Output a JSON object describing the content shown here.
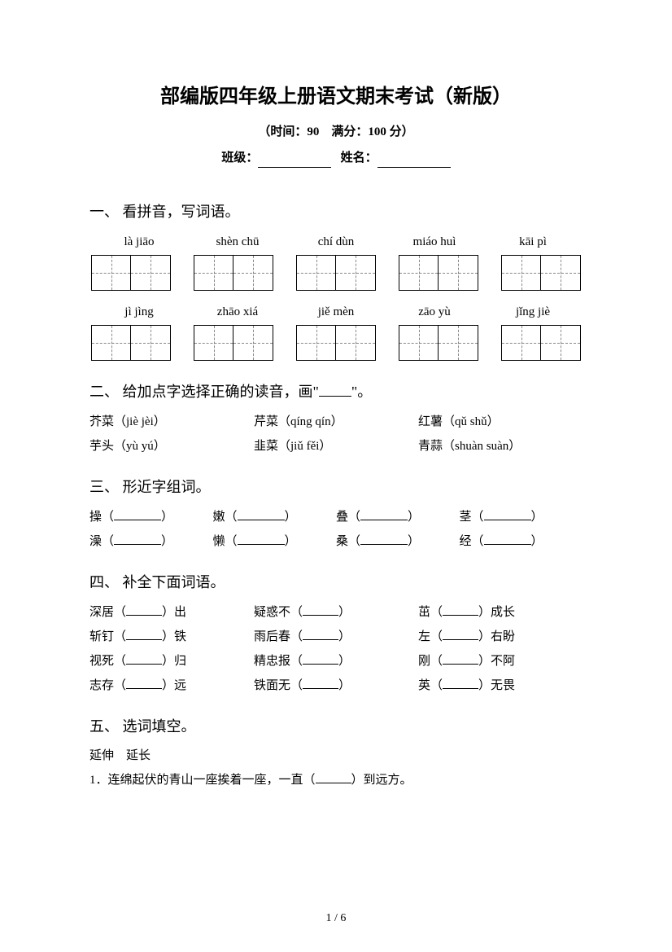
{
  "header": {
    "title": "部编版四年级上册语文期末考试（新版）",
    "subtitle": "（时间：90　满分：100 分）",
    "class_label": "班级：",
    "name_label": "姓名："
  },
  "q1": {
    "heading": "一、 看拼音，写词语。",
    "row1": [
      "là jiāo",
      "shèn chū",
      "chí dùn",
      "miáo huì",
      "kāi pì"
    ],
    "row2": [
      "jì jìng",
      "zhāo xiá",
      "jiě mèn",
      "zāo yù",
      "jǐng jiè"
    ]
  },
  "q2": {
    "heading_prefix": "二、 给加点字选择正确的读音，画\"",
    "heading_suffix": "\"。",
    "rows": [
      [
        {
          "word": "芥菜",
          "py": "（jiè jèi）"
        },
        {
          "word": "芹菜",
          "py": "（qíng qín）"
        },
        {
          "word": "红薯",
          "py": "（qǔ shǔ）"
        }
      ],
      [
        {
          "word": "芋头",
          "py": "（yù yú）"
        },
        {
          "word": "韭菜",
          "py": "（jiǔ fěi）"
        },
        {
          "word": "青蒜",
          "py": "（shuàn suàn）"
        }
      ]
    ]
  },
  "q3": {
    "heading": "三、 形近字组词。",
    "rows": [
      [
        "操",
        "嫩",
        "叠",
        "茎"
      ],
      [
        "澡",
        "懒",
        "桑",
        "经"
      ]
    ]
  },
  "q4": {
    "heading": "四、 补全下面词语。",
    "rows": [
      [
        {
          "pre": "深居（",
          "post": "）出"
        },
        {
          "pre": "疑惑不（",
          "post": "）"
        },
        {
          "pre": "茁（",
          "post": "）成长"
        }
      ],
      [
        {
          "pre": "斩钉（",
          "post": "）铁"
        },
        {
          "pre": "雨后春（",
          "post": "）"
        },
        {
          "pre": "左（",
          "post": "）右盼"
        }
      ],
      [
        {
          "pre": "视死（",
          "post": "）归"
        },
        {
          "pre": "精忠报（",
          "post": "）"
        },
        {
          "pre": "刚（",
          "post": "）不阿"
        }
      ],
      [
        {
          "pre": "志存（",
          "post": "）远"
        },
        {
          "pre": "铁面无（",
          "post": "）"
        },
        {
          "pre": "英（",
          "post": "）无畏"
        }
      ]
    ]
  },
  "q5": {
    "heading": "五、 选词填空。",
    "words": "延伸　延长",
    "line1_pre": "1．连绵起伏的青山一座挨着一座，一直（",
    "line1_post": "）到远方。"
  },
  "pager": "1 / 6"
}
